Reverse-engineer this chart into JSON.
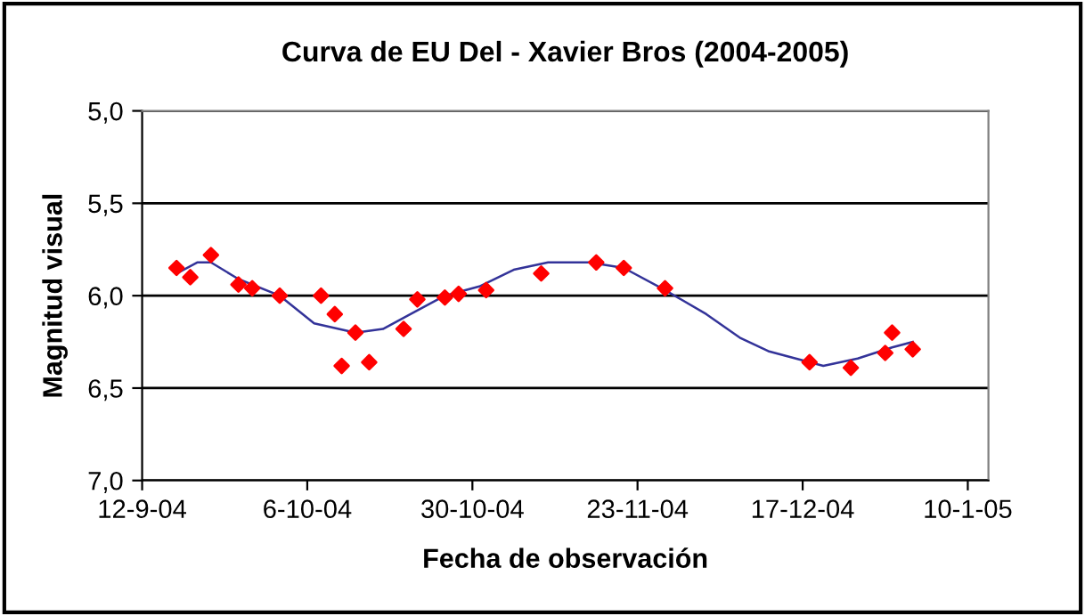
{
  "chart_data": {
    "type": "scatter",
    "title": "Curva de EU Del - Xavier Bros (2004-2005)",
    "xlabel": "Fecha de observación",
    "ylabel": "Magnitud visual",
    "series": [
      {
        "color": "#ff0000",
        "marker": "diamond",
        "x": [
          "2004-09-17",
          "2004-09-19",
          "2004-09-22",
          "2004-09-26",
          "2004-09-28",
          "2004-10-02",
          "2004-10-08",
          "2004-10-10",
          "2004-10-11",
          "2004-10-13",
          "2004-10-15",
          "2004-10-20",
          "2004-10-22",
          "2004-10-26",
          "2004-10-28",
          "2004-11-01",
          "2004-11-09",
          "2004-11-17",
          "2004-11-21",
          "2004-11-27",
          "2004-12-18",
          "2004-12-24",
          "2004-12-29",
          "2004-12-30",
          "2005-01-02"
        ],
        "values": [
          5.85,
          5.9,
          5.78,
          5.94,
          5.96,
          6.0,
          6.0,
          6.1,
          6.38,
          6.2,
          6.36,
          6.18,
          6.02,
          6.01,
          5.99,
          5.97,
          5.88,
          5.82,
          5.85,
          5.96,
          6.36,
          6.39,
          6.31,
          6.2,
          6.29
        ]
      },
      {
        "type": "line",
        "color": "#333399",
        "marker": "none",
        "line_style": "solid",
        "x": [
          "2004-09-17",
          "2004-09-20",
          "2004-09-22",
          "2004-09-26",
          "2004-10-02",
          "2004-10-07",
          "2004-10-13",
          "2004-10-17",
          "2004-10-21",
          "2004-10-26",
          "2004-10-31",
          "2004-11-05",
          "2004-11-10",
          "2004-11-16",
          "2004-11-21",
          "2004-11-27",
          "2004-12-03",
          "2004-12-08",
          "2004-12-12",
          "2004-12-20",
          "2004-12-25",
          "2004-12-30",
          "2005-01-02"
        ],
        "values": [
          5.88,
          5.82,
          5.82,
          5.91,
          6.0,
          6.15,
          6.2,
          6.18,
          6.1,
          6.0,
          5.95,
          5.86,
          5.82,
          5.82,
          5.85,
          5.97,
          6.1,
          6.23,
          6.3,
          6.38,
          6.34,
          6.28,
          6.25
        ]
      }
    ],
    "xlim": [
      "2004-09-12",
      "2005-01-13"
    ],
    "xticks": [
      {
        "value": "2004-09-12",
        "label": "12-9-04"
      },
      {
        "value": "2004-10-06",
        "label": "6-10-04"
      },
      {
        "value": "2004-10-30",
        "label": "30-10-04"
      },
      {
        "value": "2004-11-23",
        "label": "23-11-04"
      },
      {
        "value": "2004-12-17",
        "label": "17-12-04"
      },
      {
        "value": "2005-01-10",
        "label": "10-1-05"
      }
    ],
    "ylim": [
      7.0,
      5.0
    ],
    "yticks": [
      {
        "value": 5.0,
        "label": "5,0"
      },
      {
        "value": 5.5,
        "label": "5,5"
      },
      {
        "value": 6.0,
        "label": "6,0"
      },
      {
        "value": 6.5,
        "label": "6,5"
      },
      {
        "value": 7.0,
        "label": "7,0"
      }
    ],
    "grid": "y"
  }
}
